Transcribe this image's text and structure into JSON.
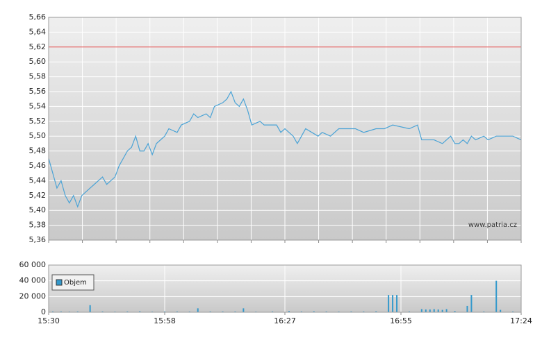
{
  "chart_data": [
    {
      "type": "line",
      "color": "#4aa3d6",
      "x": [
        "15:30",
        "15:31",
        "15:32",
        "15:33",
        "15:34",
        "15:35",
        "15:36",
        "15:37",
        "15:38",
        "15:39",
        "15:40",
        "15:41",
        "15:42",
        "15:43",
        "15:44",
        "15:45",
        "15:46",
        "15:47",
        "15:48",
        "15:49",
        "15:50",
        "15:51",
        "15:52",
        "15:53",
        "15:54",
        "15:55",
        "15:56",
        "15:58",
        "15:59",
        "16:01",
        "16:02",
        "16:04",
        "16:05",
        "16:06",
        "16:08",
        "16:09",
        "16:10",
        "16:12",
        "16:13",
        "16:14",
        "16:15",
        "16:16",
        "16:17",
        "16:18",
        "16:19",
        "16:21",
        "16:22",
        "16:25",
        "16:26",
        "16:27",
        "16:29",
        "16:30",
        "16:31",
        "16:32",
        "16:35",
        "16:36",
        "16:38",
        "16:40",
        "16:44",
        "16:46",
        "16:49",
        "16:51",
        "16:53",
        "16:57",
        "16:59",
        "17:00",
        "17:03",
        "17:05",
        "17:06",
        "17:07",
        "17:08",
        "17:09",
        "17:10",
        "17:11",
        "17:12",
        "17:13",
        "17:15",
        "17:16",
        "17:18",
        "17:22",
        "17:24"
      ],
      "values": [
        5.47,
        5.45,
        5.43,
        5.44,
        5.42,
        5.41,
        5.42,
        5.405,
        5.42,
        5.425,
        5.43,
        5.435,
        5.44,
        5.445,
        5.435,
        5.44,
        5.445,
        5.46,
        5.47,
        5.48,
        5.485,
        5.5,
        5.48,
        5.48,
        5.49,
        5.475,
        5.49,
        5.5,
        5.51,
        5.505,
        5.515,
        5.52,
        5.53,
        5.525,
        5.53,
        5.525,
        5.54,
        5.545,
        5.55,
        5.56,
        5.545,
        5.54,
        5.55,
        5.535,
        5.515,
        5.52,
        5.515,
        5.515,
        5.505,
        5.51,
        5.5,
        5.49,
        5.5,
        5.51,
        5.5,
        5.505,
        5.5,
        5.51,
        5.51,
        5.505,
        5.51,
        5.51,
        5.515,
        5.51,
        5.515,
        5.495,
        5.495,
        5.49,
        5.495,
        5.5,
        5.49,
        5.49,
        5.495,
        5.49,
        5.5,
        5.495,
        5.5,
        5.495,
        5.5,
        5.5,
        5.495
      ],
      "xlim": [
        "15:30",
        "17:24"
      ],
      "ylim": [
        5.36,
        5.66
      ],
      "yticks": [
        {
          "value": 5.36,
          "label": "5,36"
        },
        {
          "value": 5.38,
          "label": "5,38"
        },
        {
          "value": 5.4,
          "label": "5,40"
        },
        {
          "value": 5.42,
          "label": "5,42"
        },
        {
          "value": 5.44,
          "label": "5,44"
        },
        {
          "value": 5.46,
          "label": "5,46"
        },
        {
          "value": 5.48,
          "label": "5,48"
        },
        {
          "value": 5.5,
          "label": "5,50"
        },
        {
          "value": 5.52,
          "label": "5,52"
        },
        {
          "value": 5.54,
          "label": "5,54"
        },
        {
          "value": 5.56,
          "label": "5,56"
        },
        {
          "value": 5.58,
          "label": "5,58"
        },
        {
          "value": 5.6,
          "label": "5,60"
        },
        {
          "value": 5.62,
          "label": "5,62"
        },
        {
          "value": 5.64,
          "label": "5,64"
        },
        {
          "value": 5.66,
          "label": "5,66"
        }
      ],
      "reference_line": {
        "value": 5.62,
        "color": "#e04040"
      },
      "annotation": "www.patria.cz",
      "grid": true
    },
    {
      "type": "bar",
      "x": [
        "15:31",
        "15:33",
        "15:35",
        "15:37",
        "15:40",
        "15:43",
        "15:46",
        "15:49",
        "15:52",
        "15:55",
        "15:58",
        "16:01",
        "16:04",
        "16:06",
        "16:09",
        "16:12",
        "16:15",
        "16:17",
        "16:20",
        "16:24",
        "16:28",
        "16:31",
        "16:34",
        "16:37",
        "16:40",
        "16:43",
        "16:46",
        "16:49",
        "16:52",
        "16:53",
        "16:54",
        "16:57",
        "17:00",
        "17:01",
        "17:02",
        "17:03",
        "17:04",
        "17:05",
        "17:06",
        "17:08",
        "17:11",
        "17:12",
        "17:15",
        "17:18",
        "17:19",
        "17:22"
      ],
      "series": [
        {
          "name": "Objem",
          "color": "#3399cc",
          "values": [
            1000,
            1000,
            800,
            1000,
            9000,
            1000,
            800,
            1000,
            1200,
            800,
            1000,
            1000,
            900,
            5000,
            1000,
            1000,
            1000,
            5000,
            800,
            1000,
            1500,
            1000,
            1200,
            1000,
            900,
            1000,
            1000,
            1200,
            22000,
            22000,
            22000,
            1000,
            4000,
            3500,
            3500,
            4000,
            3500,
            3000,
            4000,
            1500,
            8000,
            22000,
            1000,
            40000,
            3000,
            1000
          ]
        }
      ],
      "xlim": [
        "15:30",
        "17:24"
      ],
      "xticks": [
        "15:30",
        "15:58",
        "16:27",
        "16:55",
        "17:24"
      ],
      "ylim": [
        0,
        60000
      ],
      "yticks": [
        0,
        {
          "value": 20000,
          "label": "20 000"
        },
        {
          "value": 40000,
          "label": "40 000"
        },
        {
          "value": 60000,
          "label": "60 000"
        }
      ],
      "grid": true
    }
  ]
}
